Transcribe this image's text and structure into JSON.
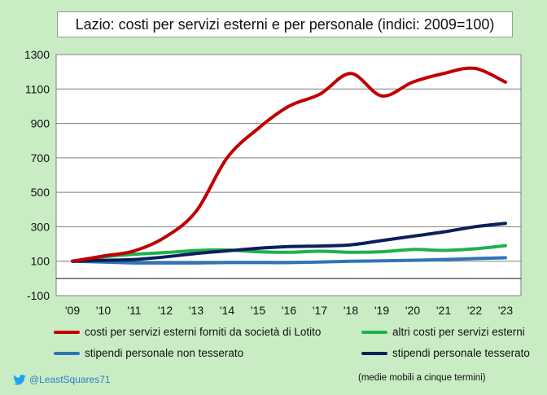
{
  "title": "Lazio: costi per servizi esterni e per personale (indici: 2009=100)",
  "handle": "@LeastSquares71",
  "note": "(medie mobili a cinque termini)",
  "chart_data": {
    "type": "line",
    "title": "Lazio: costi per servizi esterni e per personale (indici: 2009=100)",
    "categories": [
      "'09",
      "'10",
      "'11",
      "'12",
      "'13",
      "'14",
      "'15",
      "'16",
      "'17",
      "'18",
      "'19",
      "'20",
      "'21",
      "'22",
      "'23"
    ],
    "ylim": [
      -100,
      1300
    ],
    "yticks": [
      -100,
      100,
      300,
      500,
      700,
      900,
      1100,
      1300
    ],
    "grid": true,
    "legend_position": "bottom",
    "series": [
      {
        "name": "costi per servizi esterni forniti da società di Lotito",
        "color": "#c00000",
        "values": [
          100,
          130,
          160,
          240,
          390,
          700,
          870,
          1000,
          1070,
          1190,
          1060,
          1140,
          1190,
          1220,
          1140
        ]
      },
      {
        "name": "altri costi per servizi esterni",
        "color": "#1fb04f",
        "values": [
          100,
          125,
          140,
          150,
          162,
          165,
          155,
          152,
          158,
          152,
          155,
          168,
          163,
          172,
          190
        ]
      },
      {
        "name": "stipendi personale non tesserato",
        "color": "#2e75b6",
        "values": [
          100,
          95,
          90,
          90,
          90,
          92,
          92,
          92,
          95,
          100,
          102,
          105,
          110,
          115,
          120
        ]
      },
      {
        "name": "stipendi personale tesserato",
        "color": "#0b1f5c",
        "values": [
          100,
          105,
          110,
          125,
          145,
          160,
          175,
          185,
          188,
          195,
          220,
          245,
          270,
          300,
          320
        ]
      }
    ]
  }
}
